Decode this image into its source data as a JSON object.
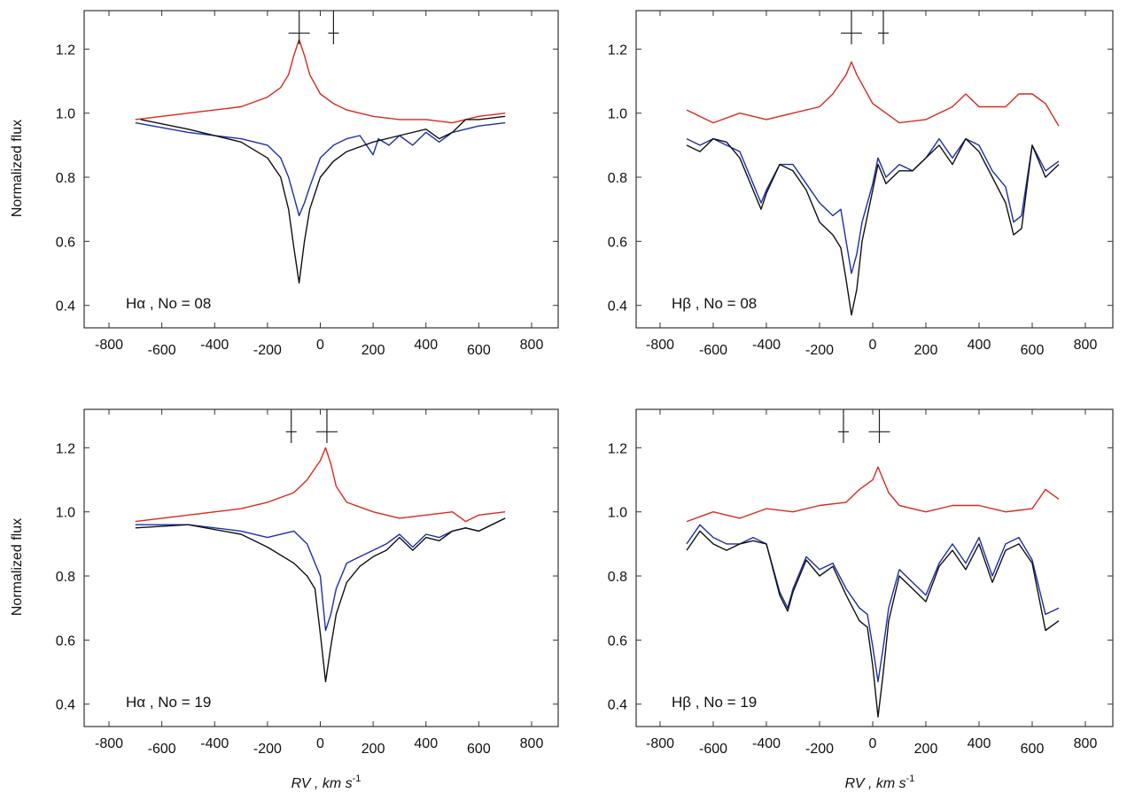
{
  "figure": {
    "xlabel_left": "RV , km s",
    "xlabel_right": "RV , km s",
    "xlabel_sup": "-1",
    "ylabel_top": "Normalized flux",
    "ylabel_bottom": "Normalized flux"
  },
  "colors": {
    "red": "#d42a1e",
    "blue": "#1c2fa8",
    "black": "#111111"
  },
  "chart_data": [
    {
      "type": "line",
      "label": "Hα , No = 08",
      "xlim": [
        -800,
        800
      ],
      "ylim": [
        0.33,
        1.32
      ],
      "xticks": [
        -800,
        -600,
        -400,
        -200,
        0,
        200,
        400,
        600,
        800
      ],
      "yticks": [
        0.4,
        0.6,
        0.8,
        1.0,
        1.2
      ],
      "markers": [
        {
          "x": -80,
          "size": "large"
        },
        {
          "x": 50,
          "size": "small"
        }
      ],
      "series": [
        {
          "color": "red",
          "x": [
            -700,
            -500,
            -300,
            -200,
            -150,
            -120,
            -100,
            -80,
            -60,
            -40,
            0,
            50,
            100,
            200,
            300,
            400,
            500,
            600,
            700
          ],
          "y": [
            0.98,
            1.0,
            1.02,
            1.05,
            1.08,
            1.12,
            1.18,
            1.23,
            1.18,
            1.12,
            1.06,
            1.03,
            1.01,
            0.99,
            0.98,
            0.98,
            0.97,
            0.99,
            1.0
          ]
        },
        {
          "color": "blue",
          "x": [
            -700,
            -500,
            -300,
            -200,
            -150,
            -120,
            -100,
            -80,
            -60,
            -40,
            0,
            50,
            100,
            150,
            200,
            220,
            260,
            300,
            350,
            400,
            450,
            500,
            600,
            700
          ],
          "y": [
            0.97,
            0.94,
            0.92,
            0.9,
            0.86,
            0.8,
            0.74,
            0.68,
            0.72,
            0.77,
            0.86,
            0.9,
            0.92,
            0.93,
            0.87,
            0.92,
            0.9,
            0.93,
            0.9,
            0.94,
            0.91,
            0.94,
            0.96,
            0.97
          ]
        },
        {
          "color": "black",
          "x": [
            -680,
            -500,
            -300,
            -200,
            -150,
            -120,
            -100,
            -80,
            -60,
            -40,
            0,
            50,
            100,
            200,
            300,
            400,
            450,
            500,
            550,
            600,
            700
          ],
          "y": [
            0.98,
            0.95,
            0.91,
            0.86,
            0.8,
            0.7,
            0.58,
            0.47,
            0.6,
            0.7,
            0.8,
            0.85,
            0.88,
            0.91,
            0.93,
            0.95,
            0.92,
            0.94,
            0.98,
            0.98,
            0.99
          ]
        }
      ]
    },
    {
      "type": "line",
      "label": "Hβ , No = 08",
      "xlim": [
        -800,
        800
      ],
      "ylim": [
        0.33,
        1.32
      ],
      "xticks": [
        -800,
        -600,
        -400,
        -200,
        0,
        200,
        400,
        600,
        800
      ],
      "yticks": [
        0.4,
        0.6,
        0.8,
        1.0,
        1.2
      ],
      "markers": [
        {
          "x": -80,
          "size": "large"
        },
        {
          "x": 40,
          "size": "small"
        }
      ],
      "series": [
        {
          "color": "red",
          "x": [
            -700,
            -600,
            -500,
            -400,
            -300,
            -200,
            -150,
            -100,
            -80,
            -60,
            0,
            50,
            100,
            200,
            300,
            350,
            400,
            500,
            550,
            600,
            650,
            700
          ],
          "y": [
            1.01,
            0.97,
            1.0,
            0.98,
            1.0,
            1.02,
            1.06,
            1.12,
            1.16,
            1.12,
            1.03,
            1.0,
            0.97,
            0.98,
            1.02,
            1.06,
            1.02,
            1.02,
            1.06,
            1.06,
            1.03,
            0.96
          ]
        },
        {
          "color": "blue",
          "x": [
            -700,
            -650,
            -600,
            -550,
            -500,
            -450,
            -420,
            -400,
            -350,
            -300,
            -250,
            -200,
            -150,
            -120,
            -100,
            -80,
            -60,
            -40,
            0,
            20,
            50,
            100,
            150,
            200,
            250,
            300,
            350,
            400,
            450,
            500,
            530,
            560,
            600,
            650,
            700
          ],
          "y": [
            0.92,
            0.9,
            0.92,
            0.9,
            0.88,
            0.78,
            0.72,
            0.76,
            0.84,
            0.84,
            0.78,
            0.72,
            0.68,
            0.7,
            0.6,
            0.5,
            0.56,
            0.66,
            0.78,
            0.86,
            0.8,
            0.84,
            0.82,
            0.86,
            0.92,
            0.86,
            0.92,
            0.9,
            0.82,
            0.77,
            0.66,
            0.68,
            0.9,
            0.82,
            0.85
          ]
        },
        {
          "color": "black",
          "x": [
            -700,
            -650,
            -600,
            -550,
            -500,
            -450,
            -420,
            -400,
            -350,
            -300,
            -250,
            -200,
            -150,
            -120,
            -100,
            -80,
            -60,
            -40,
            0,
            20,
            50,
            100,
            150,
            200,
            250,
            300,
            350,
            400,
            450,
            500,
            530,
            560,
            600,
            650,
            700
          ],
          "y": [
            0.9,
            0.88,
            0.92,
            0.91,
            0.86,
            0.76,
            0.7,
            0.75,
            0.84,
            0.82,
            0.76,
            0.66,
            0.62,
            0.58,
            0.48,
            0.37,
            0.45,
            0.6,
            0.76,
            0.84,
            0.78,
            0.82,
            0.82,
            0.86,
            0.9,
            0.84,
            0.92,
            0.88,
            0.8,
            0.72,
            0.62,
            0.64,
            0.9,
            0.8,
            0.84
          ]
        }
      ]
    },
    {
      "type": "line",
      "label": "Hα , No = 19",
      "xlim": [
        -800,
        800
      ],
      "ylim": [
        0.33,
        1.32
      ],
      "xticks": [
        -800,
        -600,
        -400,
        -200,
        0,
        200,
        400,
        600,
        800
      ],
      "yticks": [
        0.4,
        0.6,
        0.8,
        1.0,
        1.2
      ],
      "markers": [
        {
          "x": -110,
          "size": "small"
        },
        {
          "x": 25,
          "size": "large"
        }
      ],
      "series": [
        {
          "color": "red",
          "x": [
            -700,
            -500,
            -300,
            -200,
            -100,
            -50,
            0,
            20,
            40,
            60,
            100,
            200,
            300,
            400,
            500,
            550,
            600,
            700
          ],
          "y": [
            0.97,
            0.99,
            1.01,
            1.03,
            1.06,
            1.1,
            1.16,
            1.2,
            1.15,
            1.08,
            1.03,
            1.0,
            0.98,
            0.99,
            1.0,
            0.97,
            0.99,
            1.0
          ]
        },
        {
          "color": "blue",
          "x": [
            -700,
            -500,
            -300,
            -200,
            -100,
            -50,
            0,
            20,
            40,
            60,
            100,
            150,
            200,
            250,
            300,
            350,
            400,
            450,
            500,
            550,
            600,
            700
          ],
          "y": [
            0.96,
            0.96,
            0.94,
            0.92,
            0.94,
            0.9,
            0.8,
            0.63,
            0.68,
            0.76,
            0.84,
            0.86,
            0.88,
            0.9,
            0.93,
            0.89,
            0.93,
            0.92,
            0.94,
            0.95,
            0.94,
            0.98
          ]
        },
        {
          "color": "black",
          "x": [
            -700,
            -500,
            -300,
            -200,
            -100,
            -50,
            -20,
            0,
            20,
            40,
            60,
            100,
            150,
            200,
            250,
            300,
            350,
            400,
            450,
            500,
            550,
            600,
            700
          ],
          "y": [
            0.95,
            0.96,
            0.93,
            0.89,
            0.84,
            0.8,
            0.76,
            0.62,
            0.47,
            0.58,
            0.68,
            0.78,
            0.83,
            0.86,
            0.88,
            0.92,
            0.88,
            0.92,
            0.91,
            0.94,
            0.95,
            0.94,
            0.98
          ]
        }
      ]
    },
    {
      "type": "line",
      "label": "Hβ , No = 19",
      "xlim": [
        -800,
        800
      ],
      "ylim": [
        0.33,
        1.32
      ],
      "xticks": [
        -800,
        -600,
        -400,
        -200,
        0,
        200,
        400,
        600,
        800
      ],
      "yticks": [
        0.4,
        0.6,
        0.8,
        1.0,
        1.2
      ],
      "markers": [
        {
          "x": -110,
          "size": "small"
        },
        {
          "x": 25,
          "size": "large"
        }
      ],
      "series": [
        {
          "color": "red",
          "x": [
            -700,
            -600,
            -500,
            -400,
            -300,
            -200,
            -100,
            -50,
            0,
            20,
            40,
            60,
            100,
            200,
            300,
            400,
            500,
            600,
            650,
            700
          ],
          "y": [
            0.97,
            1.0,
            0.98,
            1.01,
            1.0,
            1.02,
            1.03,
            1.07,
            1.1,
            1.14,
            1.1,
            1.06,
            1.02,
            1.0,
            1.02,
            1.02,
            1.0,
            1.01,
            1.07,
            1.04
          ]
        },
        {
          "color": "blue",
          "x": [
            -700,
            -650,
            -600,
            -550,
            -500,
            -450,
            -400,
            -350,
            -320,
            -300,
            -250,
            -200,
            -150,
            -100,
            -50,
            -20,
            0,
            20,
            40,
            60,
            100,
            150,
            200,
            250,
            300,
            350,
            400,
            450,
            500,
            550,
            600,
            650,
            700
          ],
          "y": [
            0.9,
            0.96,
            0.92,
            0.9,
            0.9,
            0.92,
            0.9,
            0.75,
            0.7,
            0.76,
            0.86,
            0.82,
            0.84,
            0.76,
            0.7,
            0.68,
            0.58,
            0.47,
            0.58,
            0.7,
            0.82,
            0.78,
            0.74,
            0.84,
            0.9,
            0.84,
            0.92,
            0.8,
            0.9,
            0.92,
            0.85,
            0.68,
            0.7
          ]
        },
        {
          "color": "black",
          "x": [
            -700,
            -650,
            -600,
            -550,
            -500,
            -450,
            -400,
            -350,
            -320,
            -300,
            -250,
            -200,
            -150,
            -100,
            -50,
            -20,
            0,
            20,
            40,
            60,
            100,
            150,
            200,
            250,
            300,
            350,
            400,
            450,
            500,
            550,
            600,
            650,
            700
          ],
          "y": [
            0.88,
            0.94,
            0.9,
            0.88,
            0.9,
            0.91,
            0.9,
            0.74,
            0.69,
            0.75,
            0.85,
            0.8,
            0.83,
            0.74,
            0.66,
            0.64,
            0.52,
            0.36,
            0.5,
            0.66,
            0.8,
            0.76,
            0.72,
            0.83,
            0.88,
            0.82,
            0.9,
            0.78,
            0.88,
            0.9,
            0.84,
            0.63,
            0.66
          ]
        }
      ]
    }
  ]
}
